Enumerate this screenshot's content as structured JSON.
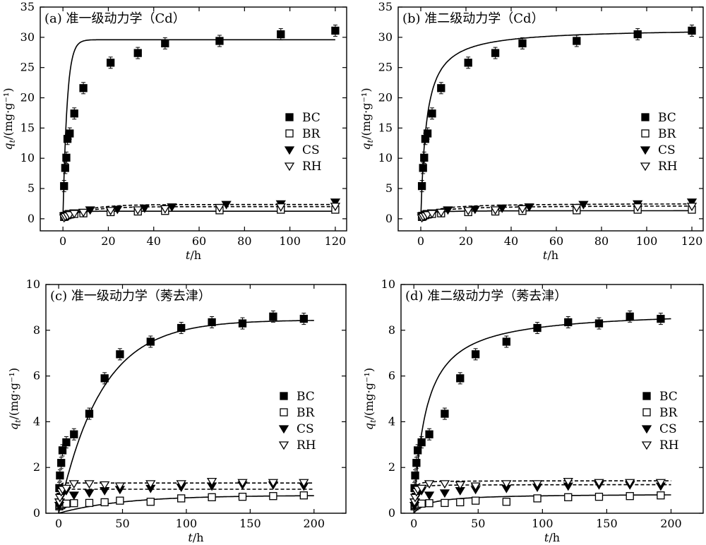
{
  "chart_data": [
    {
      "id": "a",
      "type": "scatter",
      "title": "(a) 准一级动力学（Cd）",
      "xlabel": "t/h",
      "ylabel": "q_t/(mg·g⁻¹)",
      "xlim": [
        -10,
        125
      ],
      "ylim": [
        -2,
        35
      ],
      "xticks": [
        0,
        20,
        40,
        60,
        80,
        100,
        120
      ],
      "yticks": [
        0,
        5,
        10,
        15,
        20,
        25,
        30,
        35
      ],
      "legend_position": "right",
      "series": [
        {
          "name": "BC",
          "marker": "filled-square",
          "x": [
            0.5,
            1,
            1.5,
            2,
            3,
            5,
            9,
            21,
            33,
            45,
            69,
            96,
            120
          ],
          "y": [
            5.4,
            8.4,
            10.1,
            13.2,
            14.1,
            17.4,
            21.6,
            25.8,
            27.4,
            29.0,
            29.4,
            30.5,
            31.1
          ]
        },
        {
          "name": "BR",
          "marker": "open-square",
          "x": [
            0.5,
            1,
            2,
            3,
            5,
            9,
            21,
            33,
            45,
            69,
            96,
            120
          ],
          "y": [
            0.3,
            0.4,
            0.6,
            0.7,
            0.8,
            0.9,
            1.1,
            1.2,
            1.3,
            1.4,
            1.5,
            1.5
          ]
        },
        {
          "name": "CS",
          "marker": "filled-triangle-down",
          "x": [
            0.5,
            1,
            2,
            3,
            5,
            12,
            24,
            36,
            48,
            72,
            96,
            120
          ],
          "y": [
            0.5,
            0.6,
            0.8,
            0.9,
            1.0,
            1.5,
            1.6,
            1.8,
            2.0,
            2.4,
            2.5,
            2.8
          ]
        },
        {
          "name": "RH",
          "marker": "open-triangle-down",
          "x": [
            0.5,
            1,
            2,
            3,
            5,
            9,
            21,
            33,
            45,
            69,
            96,
            120
          ],
          "y": [
            0.2,
            0.4,
            0.5,
            0.7,
            0.9,
            1.1,
            1.4,
            1.5,
            1.7,
            1.9,
            2.0,
            2.1
          ]
        }
      ],
      "fits": [
        {
          "for": "BC",
          "style": "solid",
          "model": "pfo",
          "qe": 29.6,
          "k": 0.55
        },
        {
          "for": "BR",
          "style": "solid",
          "model": "pfo",
          "qe": 1.25,
          "k": 0.3
        },
        {
          "for": "CS",
          "style": "dashed",
          "model": "pfo",
          "qe": 2.35,
          "k": 0.1
        },
        {
          "for": "RH",
          "style": "dashed",
          "model": "pfo",
          "qe": 2.0,
          "k": 0.1
        }
      ]
    },
    {
      "id": "b",
      "type": "scatter",
      "title": "(b) 准二级动力学（Cd）",
      "xlabel": "t/h",
      "ylabel": "q_t/(mg·g⁻¹)",
      "xlim": [
        -10,
        125
      ],
      "ylim": [
        -2,
        35
      ],
      "xticks": [
        0,
        20,
        40,
        60,
        80,
        100,
        120
      ],
      "yticks": [
        0,
        5,
        10,
        15,
        20,
        25,
        30,
        35
      ],
      "legend_position": "right",
      "series": [
        {
          "name": "BC",
          "marker": "filled-square",
          "x": [
            0.5,
            1,
            1.5,
            2,
            3,
            5,
            9,
            21,
            33,
            45,
            69,
            96,
            120
          ],
          "y": [
            5.4,
            8.4,
            10.1,
            13.2,
            14.1,
            17.4,
            21.6,
            25.8,
            27.4,
            29.0,
            29.4,
            30.5,
            31.1
          ]
        },
        {
          "name": "BR",
          "marker": "open-square",
          "x": [
            0.5,
            1,
            2,
            3,
            5,
            9,
            21,
            33,
            45,
            69,
            96,
            120
          ],
          "y": [
            0.3,
            0.4,
            0.6,
            0.7,
            0.8,
            0.9,
            1.1,
            1.2,
            1.3,
            1.4,
            1.5,
            1.5
          ]
        },
        {
          "name": "CS",
          "marker": "filled-triangle-down",
          "x": [
            0.5,
            1,
            2,
            3,
            5,
            12,
            24,
            36,
            48,
            72,
            96,
            120
          ],
          "y": [
            0.5,
            0.6,
            0.8,
            0.9,
            1.0,
            1.5,
            1.6,
            1.8,
            2.0,
            2.4,
            2.5,
            2.8
          ]
        },
        {
          "name": "RH",
          "marker": "open-triangle-down",
          "x": [
            0.5,
            1,
            2,
            3,
            5,
            9,
            21,
            33,
            45,
            69,
            96,
            120
          ],
          "y": [
            0.2,
            0.4,
            0.5,
            0.7,
            0.9,
            1.1,
            1.4,
            1.5,
            1.7,
            1.9,
            2.0,
            2.1
          ]
        }
      ],
      "fits": [
        {
          "for": "BC",
          "style": "solid",
          "model": "pso",
          "qe": 31.5,
          "k": 0.0127
        },
        {
          "for": "BR",
          "style": "solid",
          "model": "pso",
          "qe": 1.35,
          "k": 0.5
        },
        {
          "for": "CS",
          "style": "dashed",
          "model": "pso",
          "qe": 2.55,
          "k": 0.08
        },
        {
          "for": "RH",
          "style": "dashed",
          "model": "pso",
          "qe": 2.2,
          "k": 0.08
        }
      ]
    },
    {
      "id": "c",
      "type": "scatter",
      "title": "(c) 准一级动力学（莠去津）",
      "xlabel": "t/h",
      "ylabel": "q_t/(mg·g⁻¹)",
      "xlim": [
        -10,
        225
      ],
      "ylim": [
        0,
        10
      ],
      "xticks": [
        0,
        50,
        100,
        150,
        200
      ],
      "yticks": [
        0,
        2,
        4,
        6,
        8,
        10
      ],
      "legend_position": "right",
      "series": [
        {
          "name": "BC",
          "marker": "filled-square",
          "x": [
            0.5,
            1,
            2,
            3,
            6,
            12,
            24,
            36,
            48,
            72,
            96,
            120,
            144,
            168,
            192
          ],
          "y": [
            1.1,
            1.65,
            2.2,
            2.75,
            3.1,
            3.45,
            4.35,
            5.9,
            6.95,
            7.5,
            8.1,
            8.35,
            8.3,
            8.6,
            8.5
          ]
        },
        {
          "name": "BR",
          "marker": "open-square",
          "x": [
            0.5,
            1,
            2,
            3,
            6,
            12,
            24,
            36,
            48,
            72,
            96,
            120,
            144,
            168,
            192
          ],
          "y": [
            0.3,
            0.35,
            0.35,
            0.4,
            0.42,
            0.44,
            0.45,
            0.48,
            0.55,
            0.5,
            0.65,
            0.7,
            0.72,
            0.75,
            0.78
          ]
        },
        {
          "name": "CS",
          "marker": "filled-triangle-down",
          "x": [
            0.5,
            1,
            2,
            3,
            6,
            12,
            24,
            36,
            48,
            72,
            96,
            120,
            144,
            168,
            192
          ],
          "y": [
            0.35,
            0.5,
            0.75,
            0.95,
            1.0,
            0.8,
            0.9,
            1.0,
            1.05,
            1.1,
            1.15,
            1.2,
            1.25,
            1.25,
            1.2
          ]
        },
        {
          "name": "RH",
          "marker": "open-triangle-down",
          "x": [
            0.5,
            1,
            2,
            3,
            6,
            12,
            24,
            36,
            48,
            72,
            96,
            120,
            144,
            168,
            192
          ],
          "y": [
            0.5,
            0.7,
            0.95,
            1.05,
            1.1,
            1.3,
            1.3,
            1.25,
            1.2,
            1.3,
            1.3,
            1.4,
            1.35,
            1.35,
            1.35
          ]
        }
      ],
      "fits": [
        {
          "for": "BC",
          "style": "solid",
          "model": "pfo",
          "qe": 8.45,
          "k": 0.03
        },
        {
          "for": "BR",
          "style": "solid",
          "model": "pfo",
          "qe": 0.78,
          "k": 0.02
        },
        {
          "for": "CS",
          "style": "dashed",
          "model": "pfo",
          "qe": 1.05,
          "k": 1.5
        },
        {
          "for": "RH",
          "style": "dashed",
          "model": "pfo",
          "qe": 1.32,
          "k": 1.5
        }
      ]
    },
    {
      "id": "d",
      "type": "scatter",
      "title": "(d) 准二级动力学（莠去津）",
      "xlabel": "t/h",
      "ylabel": "q_t/(mg·g⁻¹)",
      "xlim": [
        -10,
        225
      ],
      "ylim": [
        0,
        10
      ],
      "xticks": [
        0,
        50,
        100,
        150,
        200
      ],
      "yticks": [
        0,
        2,
        4,
        6,
        8,
        10
      ],
      "legend_position": "right",
      "series": [
        {
          "name": "BC",
          "marker": "filled-square",
          "x": [
            0.5,
            1,
            2,
            3,
            6,
            12,
            24,
            36,
            48,
            72,
            96,
            120,
            144,
            168,
            192
          ],
          "y": [
            1.1,
            1.65,
            2.2,
            2.75,
            3.1,
            3.45,
            4.35,
            5.9,
            6.95,
            7.5,
            8.1,
            8.35,
            8.3,
            8.6,
            8.5
          ]
        },
        {
          "name": "BR",
          "marker": "open-square",
          "x": [
            0.5,
            1,
            2,
            3,
            6,
            12,
            24,
            36,
            48,
            72,
            96,
            120,
            144,
            168,
            192
          ],
          "y": [
            0.3,
            0.35,
            0.35,
            0.4,
            0.42,
            0.44,
            0.45,
            0.48,
            0.55,
            0.5,
            0.65,
            0.7,
            0.72,
            0.75,
            0.78
          ]
        },
        {
          "name": "CS",
          "marker": "filled-triangle-down",
          "x": [
            0.5,
            1,
            2,
            3,
            6,
            12,
            24,
            36,
            48,
            72,
            96,
            120,
            144,
            168,
            192
          ],
          "y": [
            0.35,
            0.5,
            0.75,
            0.95,
            1.0,
            0.8,
            0.9,
            1.0,
            1.05,
            1.1,
            1.15,
            1.2,
            1.25,
            1.25,
            1.2
          ]
        },
        {
          "name": "RH",
          "marker": "open-triangle-down",
          "x": [
            0.5,
            1,
            2,
            3,
            6,
            12,
            24,
            36,
            48,
            72,
            96,
            120,
            144,
            168,
            192
          ],
          "y": [
            0.5,
            0.7,
            0.95,
            1.05,
            1.1,
            1.3,
            1.3,
            1.25,
            1.2,
            1.3,
            1.3,
            1.4,
            1.35,
            1.35,
            1.35
          ]
        }
      ],
      "fits": [
        {
          "for": "BC",
          "style": "solid",
          "model": "pso",
          "qe": 8.9,
          "k": 0.012
        },
        {
          "for": "BR",
          "style": "solid",
          "model": "pso",
          "qe": 0.85,
          "k": 0.1
        },
        {
          "for": "CS",
          "style": "dashed",
          "model": "pso",
          "qe": 1.25,
          "k": 1.5
        },
        {
          "for": "RH",
          "style": "dashed",
          "model": "pso",
          "qe": 1.42,
          "k": 1.5
        }
      ]
    }
  ]
}
